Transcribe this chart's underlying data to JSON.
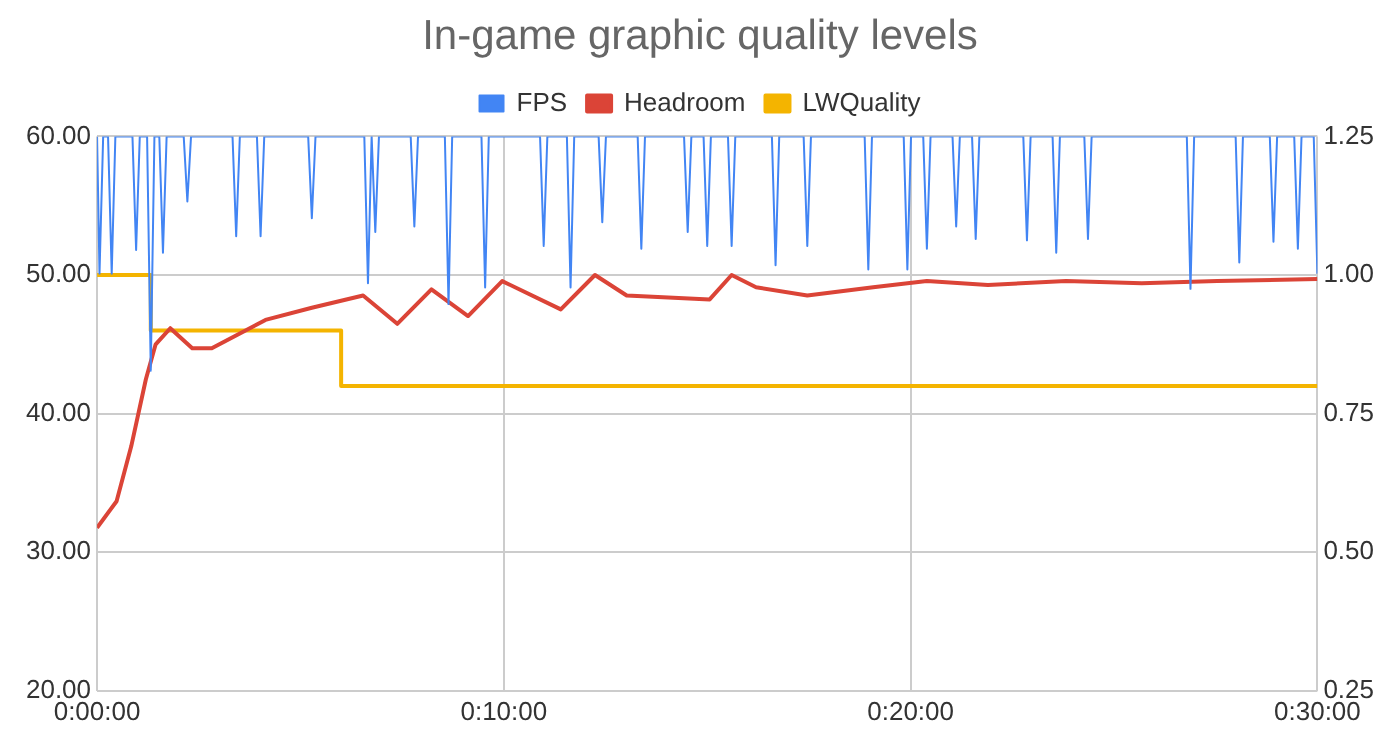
{
  "chart_data": {
    "type": "line",
    "title": "In-game graphic quality levels",
    "legend": "top",
    "grid": true,
    "marker": "none",
    "xlim": [
      0,
      0.5
    ],
    "xticks": [
      {
        "value": 0,
        "label": "0:00:00"
      },
      {
        "value": 0.16667,
        "label": "0:10:00"
      },
      {
        "value": 0.33333,
        "label": "0:20:00"
      },
      {
        "value": 0.5,
        "label": "0:30:00"
      }
    ],
    "ylim": [
      20,
      60
    ],
    "yticks": [
      {
        "value": 20,
        "label": "20.00"
      },
      {
        "value": 30,
        "label": "30.00"
      },
      {
        "value": 40,
        "label": "40.00"
      },
      {
        "value": 50,
        "label": "50.00"
      },
      {
        "value": 60,
        "label": "60.00"
      }
    ],
    "y2lim": [
      0.25,
      1.25
    ],
    "y2ticks": [
      0.25,
      {
        "value": 0.5,
        "label": "0.50"
      },
      0.75,
      {
        "value": 1,
        "label": "1.00"
      },
      1.25
    ],
    "series": [
      {
        "name": "FPS",
        "color": "#4285f4",
        "x": [
          0,
          0.001,
          0.0025,
          0.0045,
          0.006,
          0.0075,
          0.0145,
          0.016,
          0.0175,
          0.0205,
          0.022,
          0.0235,
          0.0255,
          0.027,
          0.0285,
          0.0355,
          0.037,
          0.0385,
          0.0555,
          0.057,
          0.0585,
          0.0655,
          0.067,
          0.0685,
          0.0865,
          0.088,
          0.0895,
          0.1095,
          0.111,
          0.1125,
          0.114,
          0.1155,
          0.1285,
          0.13,
          0.1315,
          0.1425,
          0.144,
          0.1455,
          0.1575,
          0.159,
          0.1605,
          0.1815,
          0.183,
          0.1845,
          0.1925,
          0.194,
          0.1955,
          0.2055,
          0.207,
          0.2085,
          0.2215,
          0.223,
          0.2245,
          0.2405,
          0.242,
          0.2435,
          0.2485,
          0.25,
          0.2515,
          0.2585,
          0.26,
          0.2615,
          0.2765,
          0.278,
          0.2795,
          0.2895,
          0.291,
          0.2925,
          0.3145,
          0.316,
          0.3175,
          0.3305,
          0.332,
          0.3335,
          0.3385,
          0.34,
          0.3415,
          0.3505,
          0.352,
          0.3535,
          0.3585,
          0.36,
          0.3615,
          0.3795,
          0.381,
          0.3825,
          0.3915,
          0.393,
          0.3945,
          0.4045,
          0.406,
          0.4075,
          0.4465,
          0.448,
          0.4495,
          0.4665,
          0.468,
          0.4695,
          0.4805,
          0.482,
          0.4835,
          0.4905,
          0.492,
          0.4935,
          0.4985,
          0.5
        ],
        "values": [
          60,
          50.1,
          60,
          60,
          50.1,
          60,
          60,
          51.8,
          60,
          60,
          43.1,
          60,
          60,
          51.6,
          60,
          60,
          55.3,
          60,
          60,
          52.8,
          60,
          60,
          52.8,
          60,
          60,
          54.1,
          60,
          60,
          49.4,
          60,
          53.1,
          60,
          60,
          53.5,
          60,
          60,
          47.9,
          60,
          60,
          49.1,
          60,
          60,
          52.1,
          60,
          60,
          49.1,
          60,
          60,
          53.8,
          60,
          60,
          51.9,
          60,
          60,
          53.1,
          60,
          60,
          52.1,
          60,
          60,
          52.1,
          60,
          60,
          50.7,
          60,
          60,
          52.1,
          60,
          60,
          50.4,
          60,
          60,
          50.4,
          60,
          60,
          51.9,
          60,
          60,
          53.5,
          60,
          60,
          52.6,
          60,
          60,
          52.5,
          60,
          60,
          51.6,
          60,
          60,
          52.6,
          60,
          60,
          49,
          60,
          60,
          50.9,
          60,
          60,
          52.4,
          60,
          60,
          51.9,
          60,
          60,
          50.1
        ]
      },
      {
        "name": "Headroom",
        "axis": "y2",
        "color": "#db4437",
        "x": [
          0,
          0.008,
          0.014,
          0.02,
          0.024,
          0.03,
          0.039,
          0.047,
          0.069,
          0.088,
          0.109,
          0.123,
          0.137,
          0.152,
          0.166,
          0.19,
          0.204,
          0.217,
          0.251,
          0.26,
          0.27,
          0.291,
          0.318,
          0.34,
          0.365,
          0.397,
          0.428,
          0.459,
          0.5
        ],
        "values": [
          0.544,
          0.592,
          0.691,
          0.812,
          0.875,
          0.904,
          0.868,
          0.868,
          0.919,
          0.941,
          0.963,
          0.912,
          0.974,
          0.926,
          0.989,
          0.938,
          1,
          0.963,
          0.956,
          1,
          0.978,
          0.963,
          0.978,
          0.989,
          0.982,
          0.989,
          0.985,
          0.989,
          0.993
        ]
      },
      {
        "name": "LWQuality",
        "type": "step",
        "axis": "y2",
        "color": "#f4b400",
        "x": [
          0,
          0.022,
          0.1,
          0.5
        ],
        "values": [
          1,
          0.9,
          0.8,
          0.8
        ]
      }
    ]
  }
}
